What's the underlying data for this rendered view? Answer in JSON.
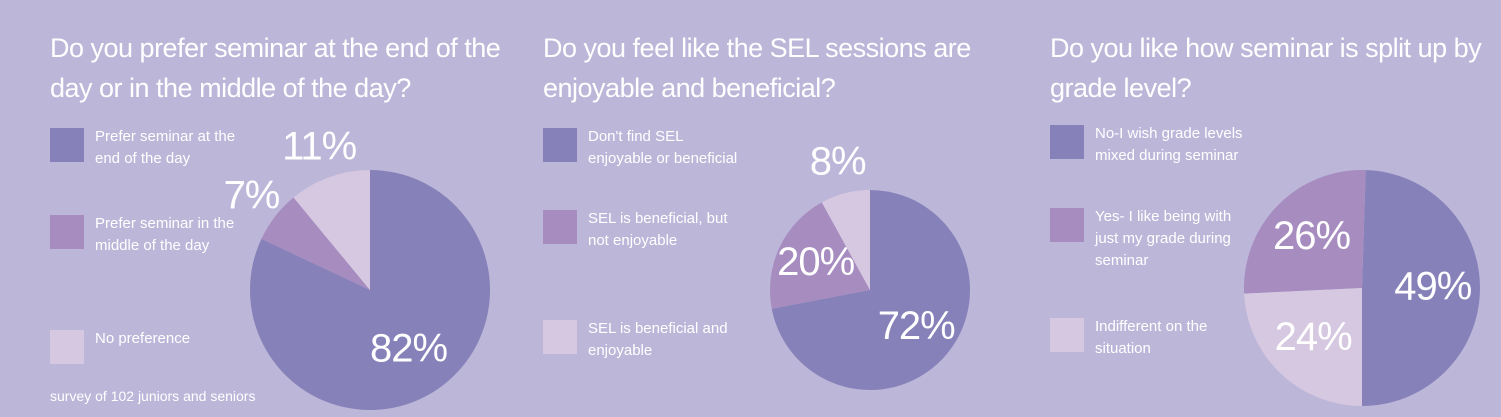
{
  "chart_data": [
    {
      "type": "pie",
      "title": "Do you prefer seminar at the end of the day or in the middle of the day?",
      "categories": [
        "Prefer seminar at the end of the day",
        "Prefer seminar in the middle of the day",
        "No preference"
      ],
      "values": [
        82,
        7,
        11
      ],
      "value_labels": [
        "82%",
        "7%",
        "11%"
      ],
      "colors": [
        "#8681b9",
        "#a78cc0",
        "#d6c8e0"
      ],
      "start_angle": 0,
      "clockwise": true,
      "footnote": "survey of 102 juniors and seniors"
    },
    {
      "type": "pie",
      "title": "Do you feel like the SEL sessions are enjoyable and beneficial?",
      "categories": [
        "Don't find SEL enjoyable or beneficial",
        "SEL is beneficial, but not enjoyable",
        "SEL is beneficial and enjoyable"
      ],
      "values": [
        72,
        20,
        8
      ],
      "value_labels": [
        "72%",
        "20%",
        "8%"
      ],
      "colors": [
        "#8681b9",
        "#a78cc0",
        "#d6c8e0"
      ],
      "start_angle": 0,
      "clockwise": true
    },
    {
      "type": "pie",
      "title": "Do you like how seminar is split up by grade level?",
      "categories": [
        "No-I wish grade levels mixed during seminar",
        "Yes- I like being with just my grade during seminar",
        "Indifferent on the situation"
      ],
      "values": [
        49,
        26,
        24
      ],
      "value_labels": [
        "49%",
        "26%",
        "24%"
      ],
      "colors": [
        "#8681b9",
        "#a78cc0",
        "#d6c8e0"
      ],
      "start_angle": 180,
      "clockwise": false
    }
  ]
}
